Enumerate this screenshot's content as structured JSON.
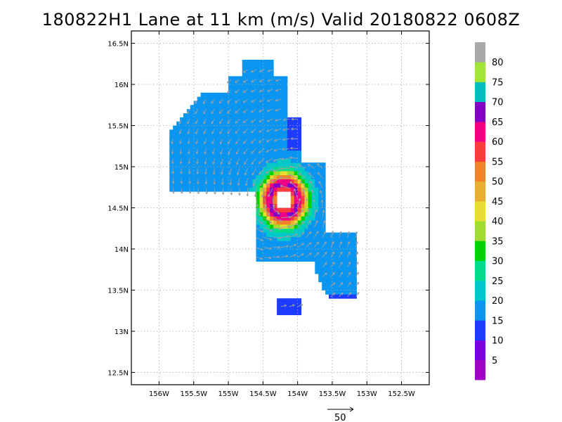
{
  "title": "180822H1 Lane at 11 km (m/s) Valid 20180822 0608Z",
  "chart_data": {
    "type": "heatmap",
    "title": "180822H1 Lane at 11 km (m/s) Valid 20180822 0608Z",
    "xlabel": "",
    "ylabel": "",
    "xlim": [
      -156.4,
      -152.1
    ],
    "ylim": [
      12.35,
      16.65
    ],
    "x_ticks": [
      -156,
      -155.5,
      -155,
      -154.5,
      -154,
      -153.5,
      -153,
      -152.5
    ],
    "x_tick_labels": [
      "156W",
      "155.5W",
      "155W",
      "154.5W",
      "154W",
      "153.5W",
      "153W",
      "152.5W"
    ],
    "y_ticks": [
      12.5,
      13,
      13.5,
      14,
      14.5,
      15,
      15.5,
      16,
      16.5
    ],
    "y_tick_labels": [
      "12.5N",
      "13N",
      "13.5N",
      "14N",
      "14.5N",
      "15N",
      "15.5N",
      "16N",
      "16.5N"
    ],
    "grid": true,
    "storm_center": {
      "lon": -154.2,
      "lat": 14.6
    },
    "colorbar": {
      "labels": [
        "5",
        "10",
        "15",
        "20",
        "25",
        "30",
        "35",
        "40",
        "45",
        "50",
        "55",
        "60",
        "65",
        "70",
        "75",
        "80"
      ],
      "colors": [
        "#a000c8",
        "#7800dc",
        "#1e3cff",
        "#0a96f0",
        "#00c8c8",
        "#00dc8c",
        "#00d200",
        "#a0dc2d",
        "#e6dc32",
        "#e6af2d",
        "#f08228",
        "#fa3c3c",
        "#f00082",
        "#8200c8",
        "#00bebe",
        "#a0e632",
        "#a9a9a9"
      ]
    },
    "reference_vector": {
      "value": 50,
      "label": "50"
    }
  }
}
